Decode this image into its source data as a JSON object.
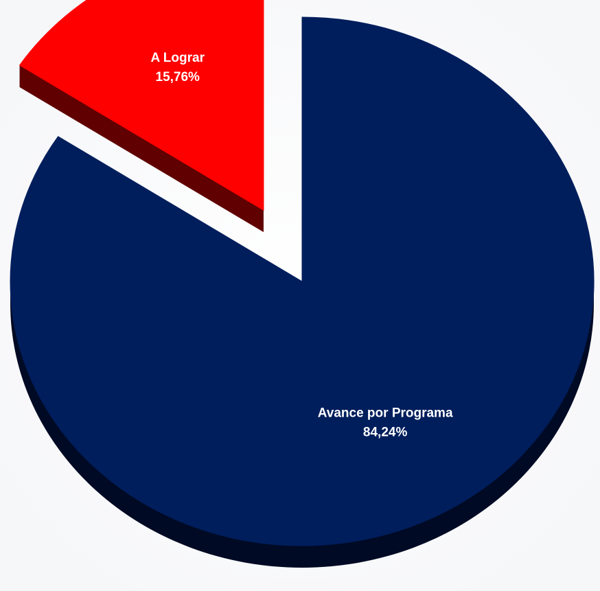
{
  "chart_data": {
    "type": "pie",
    "title": "",
    "series": [
      {
        "values": [
          84.24,
          15.76
        ],
        "labels": [
          "Avance por Programa",
          "A Lograr"
        ],
        "value_labels": [
          "84,24%",
          "15,76%"
        ],
        "colors": [
          "#001E5C",
          "#FF0000"
        ],
        "side_colors": [
          "#000A24",
          "#600000"
        ],
        "label_colors": [
          "#FFFFFF",
          "#FFFFFF"
        ],
        "exploded": [
          false,
          true
        ]
      }
    ],
    "style": "3d",
    "legend": "none",
    "start_angle_deg": -90
  }
}
